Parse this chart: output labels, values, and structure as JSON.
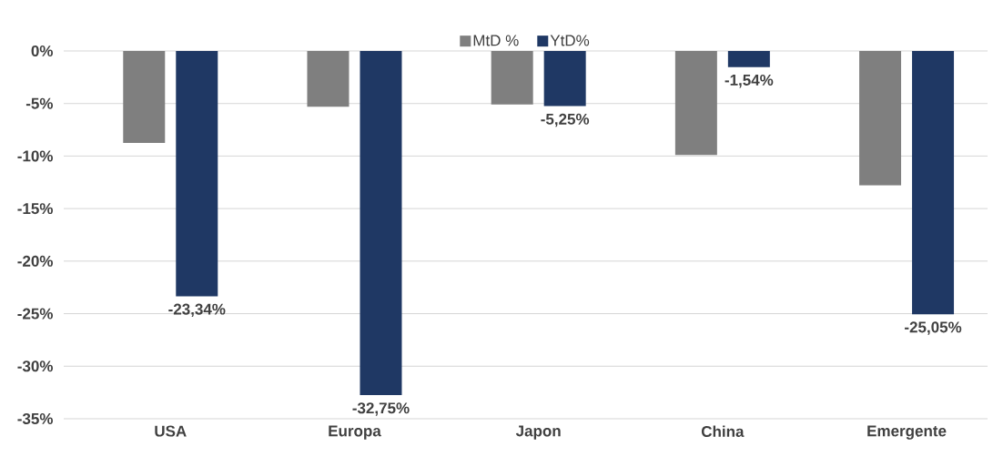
{
  "chart_data": {
    "type": "bar",
    "categories": [
      "USA",
      "Europa",
      "Japon",
      "China",
      "Emergente"
    ],
    "series": [
      {
        "name": "MtD %",
        "color": "#7f7f7f",
        "values": [
          -8.75,
          -5.3,
          -5.1,
          -9.9,
          -12.8
        ]
      },
      {
        "name": "YtD%",
        "color": "#1f3864",
        "values": [
          -23.34,
          -32.75,
          -5.25,
          -1.54,
          -25.05
        ],
        "value_labels": [
          "-23,34%",
          "-32,75%",
          "-5,25%",
          "-1,54%",
          "-25,05%"
        ]
      }
    ],
    "ylim": [
      -35,
      0
    ],
    "yticks": [
      {
        "value": 0,
        "label": "0%"
      },
      {
        "value": -5,
        "label": "-5%"
      },
      {
        "value": -10,
        "label": "-10%"
      },
      {
        "value": -15,
        "label": "-15%"
      },
      {
        "value": -20,
        "label": "-20%"
      },
      {
        "value": -25,
        "label": "-25%"
      },
      {
        "value": -30,
        "label": "-30%"
      },
      {
        "value": -35,
        "label": "-35%"
      }
    ],
    "grid": "y",
    "legend": "top"
  }
}
